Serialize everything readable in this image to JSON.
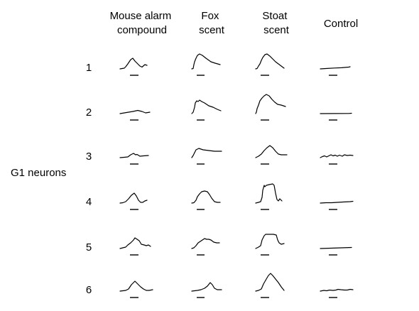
{
  "figure": {
    "group_label": "G1 neurons",
    "columns": [
      {
        "lines": [
          "Mouse alarm",
          "compound"
        ]
      },
      {
        "lines": [
          "Fox",
          "scent"
        ]
      },
      {
        "lines": [
          "Stoat",
          "scent"
        ]
      },
      {
        "lines": [
          "Control"
        ]
      }
    ],
    "rows": [
      {
        "label": "1",
        "traces": [
          [
            [
              0,
              0
            ],
            [
              3,
              0.5
            ],
            [
              6,
              1
            ],
            [
              8,
              3
            ],
            [
              11,
              7
            ],
            [
              15,
              13
            ],
            [
              18,
              15
            ],
            [
              21,
              11
            ],
            [
              25,
              7
            ],
            [
              28,
              4
            ],
            [
              31,
              2.5
            ],
            [
              35,
              6
            ],
            [
              38,
              5
            ]
          ],
          [
            [
              0,
              0
            ],
            [
              2,
              0.5
            ],
            [
              3,
              6
            ],
            [
              4,
              10
            ],
            [
              6,
              15
            ],
            [
              8,
              19
            ],
            [
              11,
              21
            ],
            [
              15,
              19
            ],
            [
              20,
              15
            ],
            [
              27,
              10
            ],
            [
              33,
              8
            ],
            [
              40,
              6
            ]
          ],
          [
            [
              0,
              0
            ],
            [
              2,
              0.5
            ],
            [
              4,
              4
            ],
            [
              6,
              7
            ],
            [
              8,
              12
            ],
            [
              10,
              16
            ],
            [
              13,
              20
            ],
            [
              16,
              21
            ],
            [
              20,
              18
            ],
            [
              24,
              14
            ],
            [
              28,
              10
            ],
            [
              32,
              7
            ],
            [
              36,
              4
            ],
            [
              40,
              1
            ]
          ],
          [
            [
              0,
              0
            ],
            [
              10,
              0.6
            ],
            [
              20,
              1.2
            ],
            [
              30,
              1.6
            ],
            [
              40,
              2.5
            ],
            [
              42,
              3
            ]
          ]
        ]
      },
      {
        "label": "2",
        "traces": [
          [
            [
              0,
              0
            ],
            [
              6,
              1
            ],
            [
              12,
              2
            ],
            [
              18,
              3
            ],
            [
              25,
              4.5
            ],
            [
              31,
              3
            ],
            [
              36,
              1
            ],
            [
              42,
              2
            ]
          ],
          [
            [
              0,
              0
            ],
            [
              2,
              2
            ],
            [
              4,
              9
            ],
            [
              5,
              15
            ],
            [
              7,
              18
            ],
            [
              9,
              17
            ],
            [
              11,
              19
            ],
            [
              14,
              17
            ],
            [
              18,
              15
            ],
            [
              24,
              11
            ],
            [
              30,
              9
            ],
            [
              36,
              6
            ],
            [
              41,
              4
            ]
          ],
          [
            [
              0,
              0
            ],
            [
              1,
              2
            ],
            [
              2,
              7
            ],
            [
              4,
              12
            ],
            [
              6,
              18
            ],
            [
              9,
              22
            ],
            [
              12,
              25
            ],
            [
              15,
              27
            ],
            [
              19,
              25
            ],
            [
              23,
              20
            ],
            [
              27,
              16
            ],
            [
              31,
              13
            ],
            [
              36,
              12
            ],
            [
              42,
              10
            ]
          ],
          [
            [
              0,
              0
            ],
            [
              20,
              0.1
            ],
            [
              40,
              0.2
            ],
            [
              44,
              0.5
            ]
          ]
        ]
      },
      {
        "label": "3",
        "traces": [
          [
            [
              0,
              0
            ],
            [
              6,
              0.5
            ],
            [
              11,
              1
            ],
            [
              15,
              4
            ],
            [
              19,
              6
            ],
            [
              22,
              4
            ],
            [
              24,
              4.5
            ],
            [
              28,
              2
            ],
            [
              33,
              2.5
            ],
            [
              40,
              3
            ]
          ],
          [
            [
              0,
              0
            ],
            [
              2,
              3
            ],
            [
              4,
              7
            ],
            [
              6,
              11
            ],
            [
              10,
              13
            ],
            [
              16,
              11
            ],
            [
              24,
              10
            ],
            [
              32,
              9
            ],
            [
              42,
              9
            ]
          ],
          [
            [
              0,
              0
            ],
            [
              4,
              2
            ],
            [
              8,
              5
            ],
            [
              12,
              10
            ],
            [
              16,
              14
            ],
            [
              20,
              17
            ],
            [
              24,
              14
            ],
            [
              28,
              9
            ],
            [
              32,
              5
            ],
            [
              36,
              4
            ],
            [
              44,
              4
            ]
          ],
          [
            [
              0,
              0
            ],
            [
              3,
              1.5
            ],
            [
              6,
              2.5
            ],
            [
              9,
              1
            ],
            [
              12,
              2.5
            ],
            [
              15,
              4
            ],
            [
              18,
              2.5
            ],
            [
              21,
              3.5
            ],
            [
              24,
              2
            ],
            [
              27,
              3.5
            ],
            [
              31,
              2
            ],
            [
              34,
              4
            ],
            [
              38,
              3
            ],
            [
              42,
              3.5
            ],
            [
              46,
              3
            ]
          ]
        ]
      },
      {
        "label": "4",
        "traces": [
          [
            [
              0,
              0
            ],
            [
              4,
              0.5
            ],
            [
              8,
              2
            ],
            [
              12,
              6
            ],
            [
              16,
              11
            ],
            [
              20,
              14
            ],
            [
              23,
              10
            ],
            [
              26,
              4
            ],
            [
              29,
              1
            ],
            [
              32,
              1
            ],
            [
              35,
              3
            ],
            [
              38,
              4
            ]
          ],
          [
            [
              0,
              0
            ],
            [
              3,
              0.5
            ],
            [
              6,
              4
            ],
            [
              8,
              9
            ],
            [
              11,
              13
            ],
            [
              14,
              16
            ],
            [
              18,
              17
            ],
            [
              22,
              16
            ],
            [
              25,
              12
            ],
            [
              28,
              7
            ],
            [
              32,
              2
            ],
            [
              36,
              1
            ],
            [
              40,
              1
            ]
          ],
          [
            [
              0,
              0
            ],
            [
              4,
              1
            ],
            [
              7,
              2
            ],
            [
              9,
              8
            ],
            [
              10,
              18
            ],
            [
              12,
              25
            ],
            [
              13,
              23
            ],
            [
              15,
              25
            ],
            [
              19,
              26
            ],
            [
              24,
              27
            ],
            [
              26,
              25
            ],
            [
              28,
              14
            ],
            [
              30,
              5
            ],
            [
              32,
              3
            ],
            [
              34,
              6
            ],
            [
              37,
              3
            ]
          ],
          [
            [
              0,
              0
            ],
            [
              8,
              0.5
            ],
            [
              16,
              0.5
            ],
            [
              24,
              1
            ],
            [
              32,
              1.5
            ],
            [
              42,
              2
            ],
            [
              46,
              2.5
            ]
          ]
        ]
      },
      {
        "label": "5",
        "traces": [
          [
            [
              0,
              0
            ],
            [
              4,
              1
            ],
            [
              8,
              2
            ],
            [
              11,
              5
            ],
            [
              15,
              8
            ],
            [
              19,
              12
            ],
            [
              21,
              15
            ],
            [
              24,
              13
            ],
            [
              27,
              11
            ],
            [
              30,
              6
            ],
            [
              34,
              5
            ],
            [
              37,
              4
            ],
            [
              40,
              5
            ],
            [
              43,
              3
            ]
          ],
          [
            [
              0,
              0
            ],
            [
              3,
              1
            ],
            [
              6,
              4
            ],
            [
              9,
              8
            ],
            [
              12,
              10
            ],
            [
              15,
              12
            ],
            [
              18,
              14
            ],
            [
              21,
              13
            ],
            [
              24,
              13
            ],
            [
              27,
              12
            ],
            [
              31,
              9
            ],
            [
              35,
              8
            ],
            [
              39,
              8
            ]
          ],
          [
            [
              0,
              0
            ],
            [
              4,
              2
            ],
            [
              7,
              4
            ],
            [
              9,
              12
            ],
            [
              12,
              18
            ],
            [
              14,
              20
            ],
            [
              17,
              20
            ],
            [
              21,
              20
            ],
            [
              25,
              20
            ],
            [
              29,
              19
            ],
            [
              31,
              12
            ],
            [
              33,
              8
            ],
            [
              36,
              6
            ],
            [
              40,
              7
            ]
          ],
          [
            [
              0,
              0
            ],
            [
              15,
              0.5
            ],
            [
              30,
              1
            ],
            [
              44,
              1.5
            ]
          ]
        ]
      },
      {
        "label": "6",
        "traces": [
          [
            [
              0,
              0
            ],
            [
              4,
              0.5
            ],
            [
              8,
              1
            ],
            [
              12,
              3
            ],
            [
              16,
              9
            ],
            [
              21,
              14
            ],
            [
              25,
              10
            ],
            [
              29,
              6
            ],
            [
              33,
              3
            ],
            [
              37,
              1
            ],
            [
              41,
              1
            ],
            [
              46,
              2
            ]
          ],
          [
            [
              0,
              0
            ],
            [
              8,
              1
            ],
            [
              13,
              2
            ],
            [
              18,
              4
            ],
            [
              22,
              7
            ],
            [
              26,
              12
            ],
            [
              29,
              9
            ],
            [
              32,
              4
            ],
            [
              36,
              2
            ],
            [
              42,
              2
            ]
          ],
          [
            [
              0,
              0
            ],
            [
              4,
              1
            ],
            [
              8,
              3
            ],
            [
              11,
              10
            ],
            [
              15,
              17
            ],
            [
              18,
              22
            ],
            [
              21,
              25
            ],
            [
              24,
              22
            ],
            [
              28,
              17
            ],
            [
              32,
              12
            ],
            [
              36,
              6
            ],
            [
              40,
              1
            ]
          ],
          [
            [
              0,
              0
            ],
            [
              5,
              1
            ],
            [
              9,
              0.5
            ],
            [
              13,
              1.5
            ],
            [
              18,
              1
            ],
            [
              22,
              1.5
            ],
            [
              25,
              2.5
            ],
            [
              29,
              2
            ],
            [
              34,
              1.5
            ],
            [
              38,
              1.5
            ],
            [
              42,
              2.5
            ],
            [
              46,
              2
            ]
          ]
        ]
      }
    ]
  }
}
